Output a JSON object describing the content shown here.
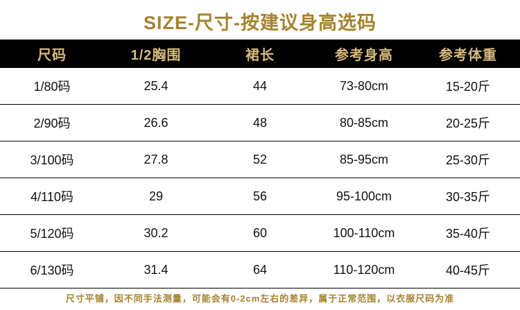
{
  "chart_data": {
    "type": "table",
    "title": "SIZE-尺寸-按建议身高选码",
    "columns": [
      "尺码",
      "1/2胸围",
      "裙长",
      "参考身高",
      "参考体重"
    ],
    "rows": [
      [
        "1/80码",
        "25.4",
        "44",
        "73-80cm",
        "15-20斤"
      ],
      [
        "2/90码",
        "26.6",
        "48",
        "80-85cm",
        "20-25斤"
      ],
      [
        "3/100码",
        "27.8",
        "52",
        "85-95cm",
        "25-30斤"
      ],
      [
        "4/110码",
        "29",
        "56",
        "95-100cm",
        "30-35斤"
      ],
      [
        "5/120码",
        "30.2",
        "60",
        "100-110cm",
        "35-40斤"
      ],
      [
        "6/130码",
        "31.4",
        "64",
        "110-120cm",
        "40-45斤"
      ]
    ],
    "footnote": "尺寸平铺，因不同手法测量，可能会有0-2cm左右的差异，属于正常范围，以衣服尺码为准"
  },
  "colors": {
    "accent_gold": "#a5822e",
    "header_background": "#000000",
    "header_text": "#d6ba7d",
    "body_text": "#111111"
  }
}
